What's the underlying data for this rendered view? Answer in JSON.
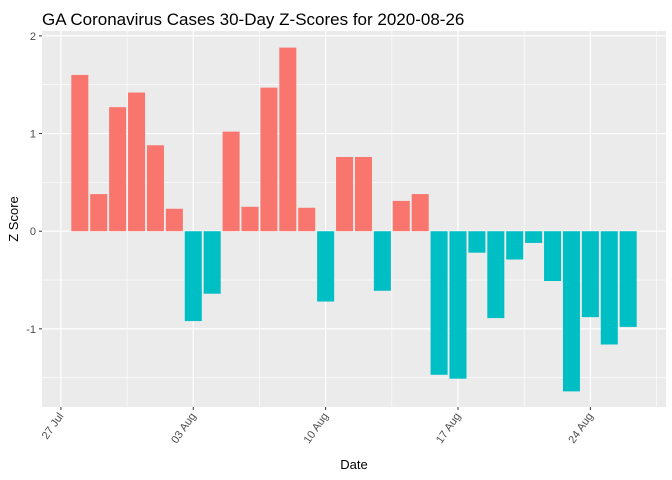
{
  "chart_data": {
    "type": "bar",
    "title": "GA Coronavirus Cases 30-Day Z-Scores for 2020-08-26",
    "xlabel": "Date",
    "ylabel": "Z Score",
    "x_axis_kind": "date",
    "xlim": [
      "2020-07-26",
      "2020-08-28"
    ],
    "ylim": [
      -1.8,
      2.05
    ],
    "y_ticks": [
      -1,
      0,
      1,
      2
    ],
    "x_ticks": [
      {
        "date": "2020-07-27",
        "label": "27 Jul"
      },
      {
        "date": "2020-08-03",
        "label": "03 Aug"
      },
      {
        "date": "2020-08-10",
        "label": "10 Aug"
      },
      {
        "date": "2020-08-17",
        "label": "17 Aug"
      },
      {
        "date": "2020-08-24",
        "label": "24 Aug"
      }
    ],
    "grid": true,
    "legend": "none",
    "colors": {
      "positive": "#F8766D",
      "negative": "#00BFC4",
      "panel": "#EBEBEB",
      "grid": "#FFFFFF"
    },
    "points": [
      {
        "date": "2020-07-28",
        "value": 1.6
      },
      {
        "date": "2020-07-29",
        "value": 0.38
      },
      {
        "date": "2020-07-30",
        "value": 1.27
      },
      {
        "date": "2020-07-31",
        "value": 1.42
      },
      {
        "date": "2020-08-01",
        "value": 0.88
      },
      {
        "date": "2020-08-02",
        "value": 0.23
      },
      {
        "date": "2020-08-03",
        "value": -0.92
      },
      {
        "date": "2020-08-04",
        "value": -0.64
      },
      {
        "date": "2020-08-05",
        "value": 1.02
      },
      {
        "date": "2020-08-06",
        "value": 0.25
      },
      {
        "date": "2020-08-07",
        "value": 1.47
      },
      {
        "date": "2020-08-08",
        "value": 1.88
      },
      {
        "date": "2020-08-09",
        "value": 0.24
      },
      {
        "date": "2020-08-10",
        "value": -0.72
      },
      {
        "date": "2020-08-11",
        "value": 0.76
      },
      {
        "date": "2020-08-12",
        "value": 0.76
      },
      {
        "date": "2020-08-13",
        "value": -0.61
      },
      {
        "date": "2020-08-14",
        "value": 0.31
      },
      {
        "date": "2020-08-15",
        "value": 0.38
      },
      {
        "date": "2020-08-16",
        "value": -1.47
      },
      {
        "date": "2020-08-17",
        "value": -1.51
      },
      {
        "date": "2020-08-18",
        "value": -0.22
      },
      {
        "date": "2020-08-19",
        "value": -0.89
      },
      {
        "date": "2020-08-20",
        "value": -0.29
      },
      {
        "date": "2020-08-21",
        "value": -0.12
      },
      {
        "date": "2020-08-22",
        "value": -0.51
      },
      {
        "date": "2020-08-23",
        "value": -1.64
      },
      {
        "date": "2020-08-24",
        "value": -0.88
      },
      {
        "date": "2020-08-25",
        "value": -1.16
      },
      {
        "date": "2020-08-26",
        "value": -0.98
      }
    ]
  }
}
